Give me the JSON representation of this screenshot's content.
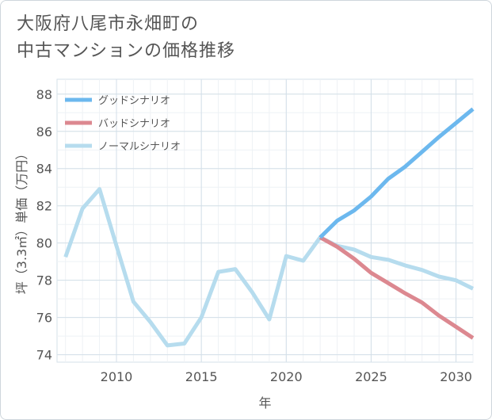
{
  "title_line1": "大阪府八尾市永畑町の",
  "title_line2": "中古マンションの価格推移",
  "chart_data": {
    "type": "line",
    "xlabel": "年",
    "ylabel": "坪（3.3㎡）単価（万円）",
    "xlim": [
      2006.5,
      2031
    ],
    "ylim": [
      73.6,
      88.8
    ],
    "xticks": [
      2010,
      2015,
      2020,
      2025,
      2030
    ],
    "yticks": [
      74,
      76,
      78,
      80,
      82,
      84,
      86,
      88
    ],
    "grid": true,
    "legend_position": "top-left",
    "series": [
      {
        "name": "グッドシナリオ",
        "color": "#6cb8ee",
        "x": [
          2022,
          2023,
          2024,
          2025,
          2026,
          2027,
          2028,
          2029,
          2030,
          2031
        ],
        "y": [
          80.3,
          81.2,
          81.75,
          82.5,
          83.45,
          84.1,
          84.9,
          85.7,
          86.45,
          87.2
        ]
      },
      {
        "name": "バッドシナリオ",
        "color": "#dc8890",
        "x": [
          2022,
          2023,
          2024,
          2025,
          2026,
          2027,
          2028,
          2029,
          2030,
          2031
        ],
        "y": [
          80.3,
          79.8,
          79.15,
          78.4,
          77.85,
          77.3,
          76.8,
          76.1,
          75.5,
          74.9
        ]
      },
      {
        "name": "ノーマルシナリオ",
        "color": "#b6dcee",
        "x": [
          2007,
          2008,
          2009,
          2010,
          2011,
          2012,
          2013,
          2014,
          2015,
          2016,
          2017,
          2018,
          2019,
          2020,
          2021,
          2022,
          2023,
          2024,
          2025,
          2026,
          2027,
          2028,
          2029,
          2030,
          2031
        ],
        "y": [
          79.25,
          81.85,
          82.9,
          79.85,
          76.85,
          75.75,
          74.5,
          74.6,
          76.0,
          78.45,
          78.6,
          77.35,
          75.9,
          79.3,
          79.05,
          80.3,
          79.85,
          79.65,
          79.25,
          79.1,
          78.8,
          78.55,
          78.2,
          78.0,
          77.55
        ]
      }
    ]
  }
}
